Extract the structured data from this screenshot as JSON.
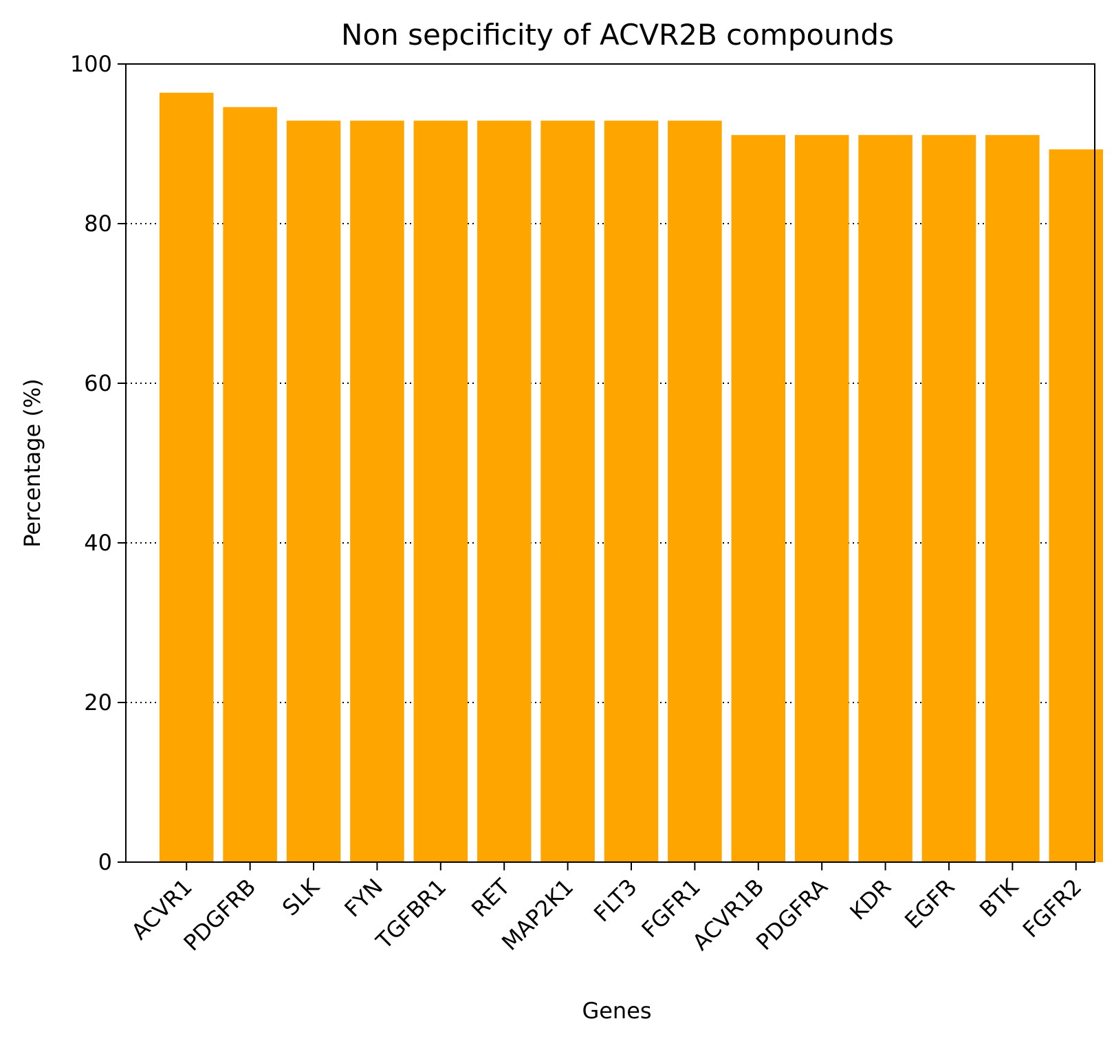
{
  "chart_data": {
    "type": "bar",
    "title": "Non sepcificity of ACVR2B compounds",
    "xlabel": "Genes",
    "ylabel": "Percentage (%)",
    "categories": [
      "ACVR1",
      "PDGFRB",
      "SLK",
      "FYN",
      "TGFBR1",
      "RET",
      "MAP2K1",
      "FLT3",
      "FGFR1",
      "ACVR1B",
      "PDGFRA",
      "KDR",
      "EGFR",
      "BTK",
      "FGFR2"
    ],
    "values": [
      96.4,
      94.6,
      92.9,
      92.9,
      92.9,
      92.9,
      92.9,
      92.9,
      92.9,
      91.1,
      91.1,
      91.1,
      91.1,
      91.1,
      89.3
    ],
    "ylim": [
      0,
      100
    ],
    "yticks": [
      "0",
      "20",
      "40",
      "60",
      "80",
      "100"
    ],
    "grid": "y, dotted",
    "bar_color": "#FFA500",
    "grid_color": "#000000"
  }
}
